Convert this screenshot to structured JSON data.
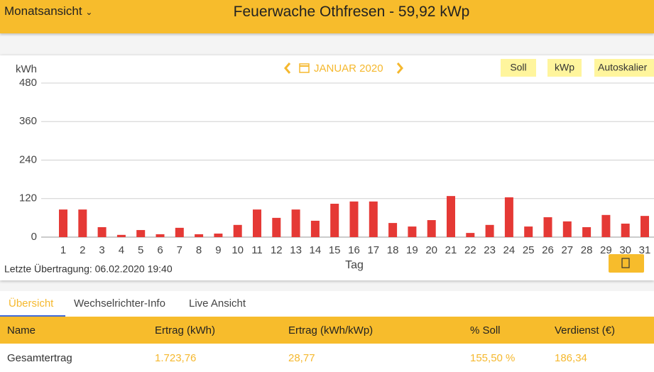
{
  "header": {
    "view_menu": "Monatsansicht",
    "title": "Feuerwache Othfresen - 59,92 kWp"
  },
  "chart_data": {
    "type": "bar",
    "y_label": "kWh",
    "x_label": "Tag",
    "period": "JANUAR 2020",
    "buttons": [
      "Soll",
      "kWp",
      "Autoskalier"
    ],
    "categories": [
      "1",
      "2",
      "3",
      "4",
      "5",
      "6",
      "7",
      "8",
      "9",
      "10",
      "11",
      "12",
      "13",
      "14",
      "15",
      "16",
      "17",
      "18",
      "19",
      "20",
      "21",
      "22",
      "23",
      "24",
      "25",
      "26",
      "27",
      "28",
      "29",
      "30",
      "31"
    ],
    "values": [
      86,
      86,
      31,
      7,
      22,
      9,
      29,
      9,
      11,
      38,
      86,
      60,
      86,
      51,
      104,
      111,
      111,
      44,
      33,
      53,
      128,
      13,
      38,
      124,
      33,
      62,
      49,
      31,
      69,
      42,
      66
    ],
    "color": "#e53935",
    "ylim": [
      0,
      480
    ],
    "yticks": [
      0,
      120,
      240,
      360,
      480
    ],
    "grid": true
  },
  "status": "Letzte Übertragung: 06.02.2020 19:40",
  "tabs": [
    "Übersicht",
    "Wechselrichter-Info",
    "Live Ansicht"
  ],
  "table": {
    "columns": [
      "Name",
      "Ertrag (kWh)",
      "Ertrag (kWh/kWp)",
      "% Soll",
      "Verdienst (€)"
    ],
    "rows": [
      [
        "Gesamtertrag",
        "1.723,76",
        "28,77",
        "155,50 %",
        "186,34"
      ]
    ]
  }
}
